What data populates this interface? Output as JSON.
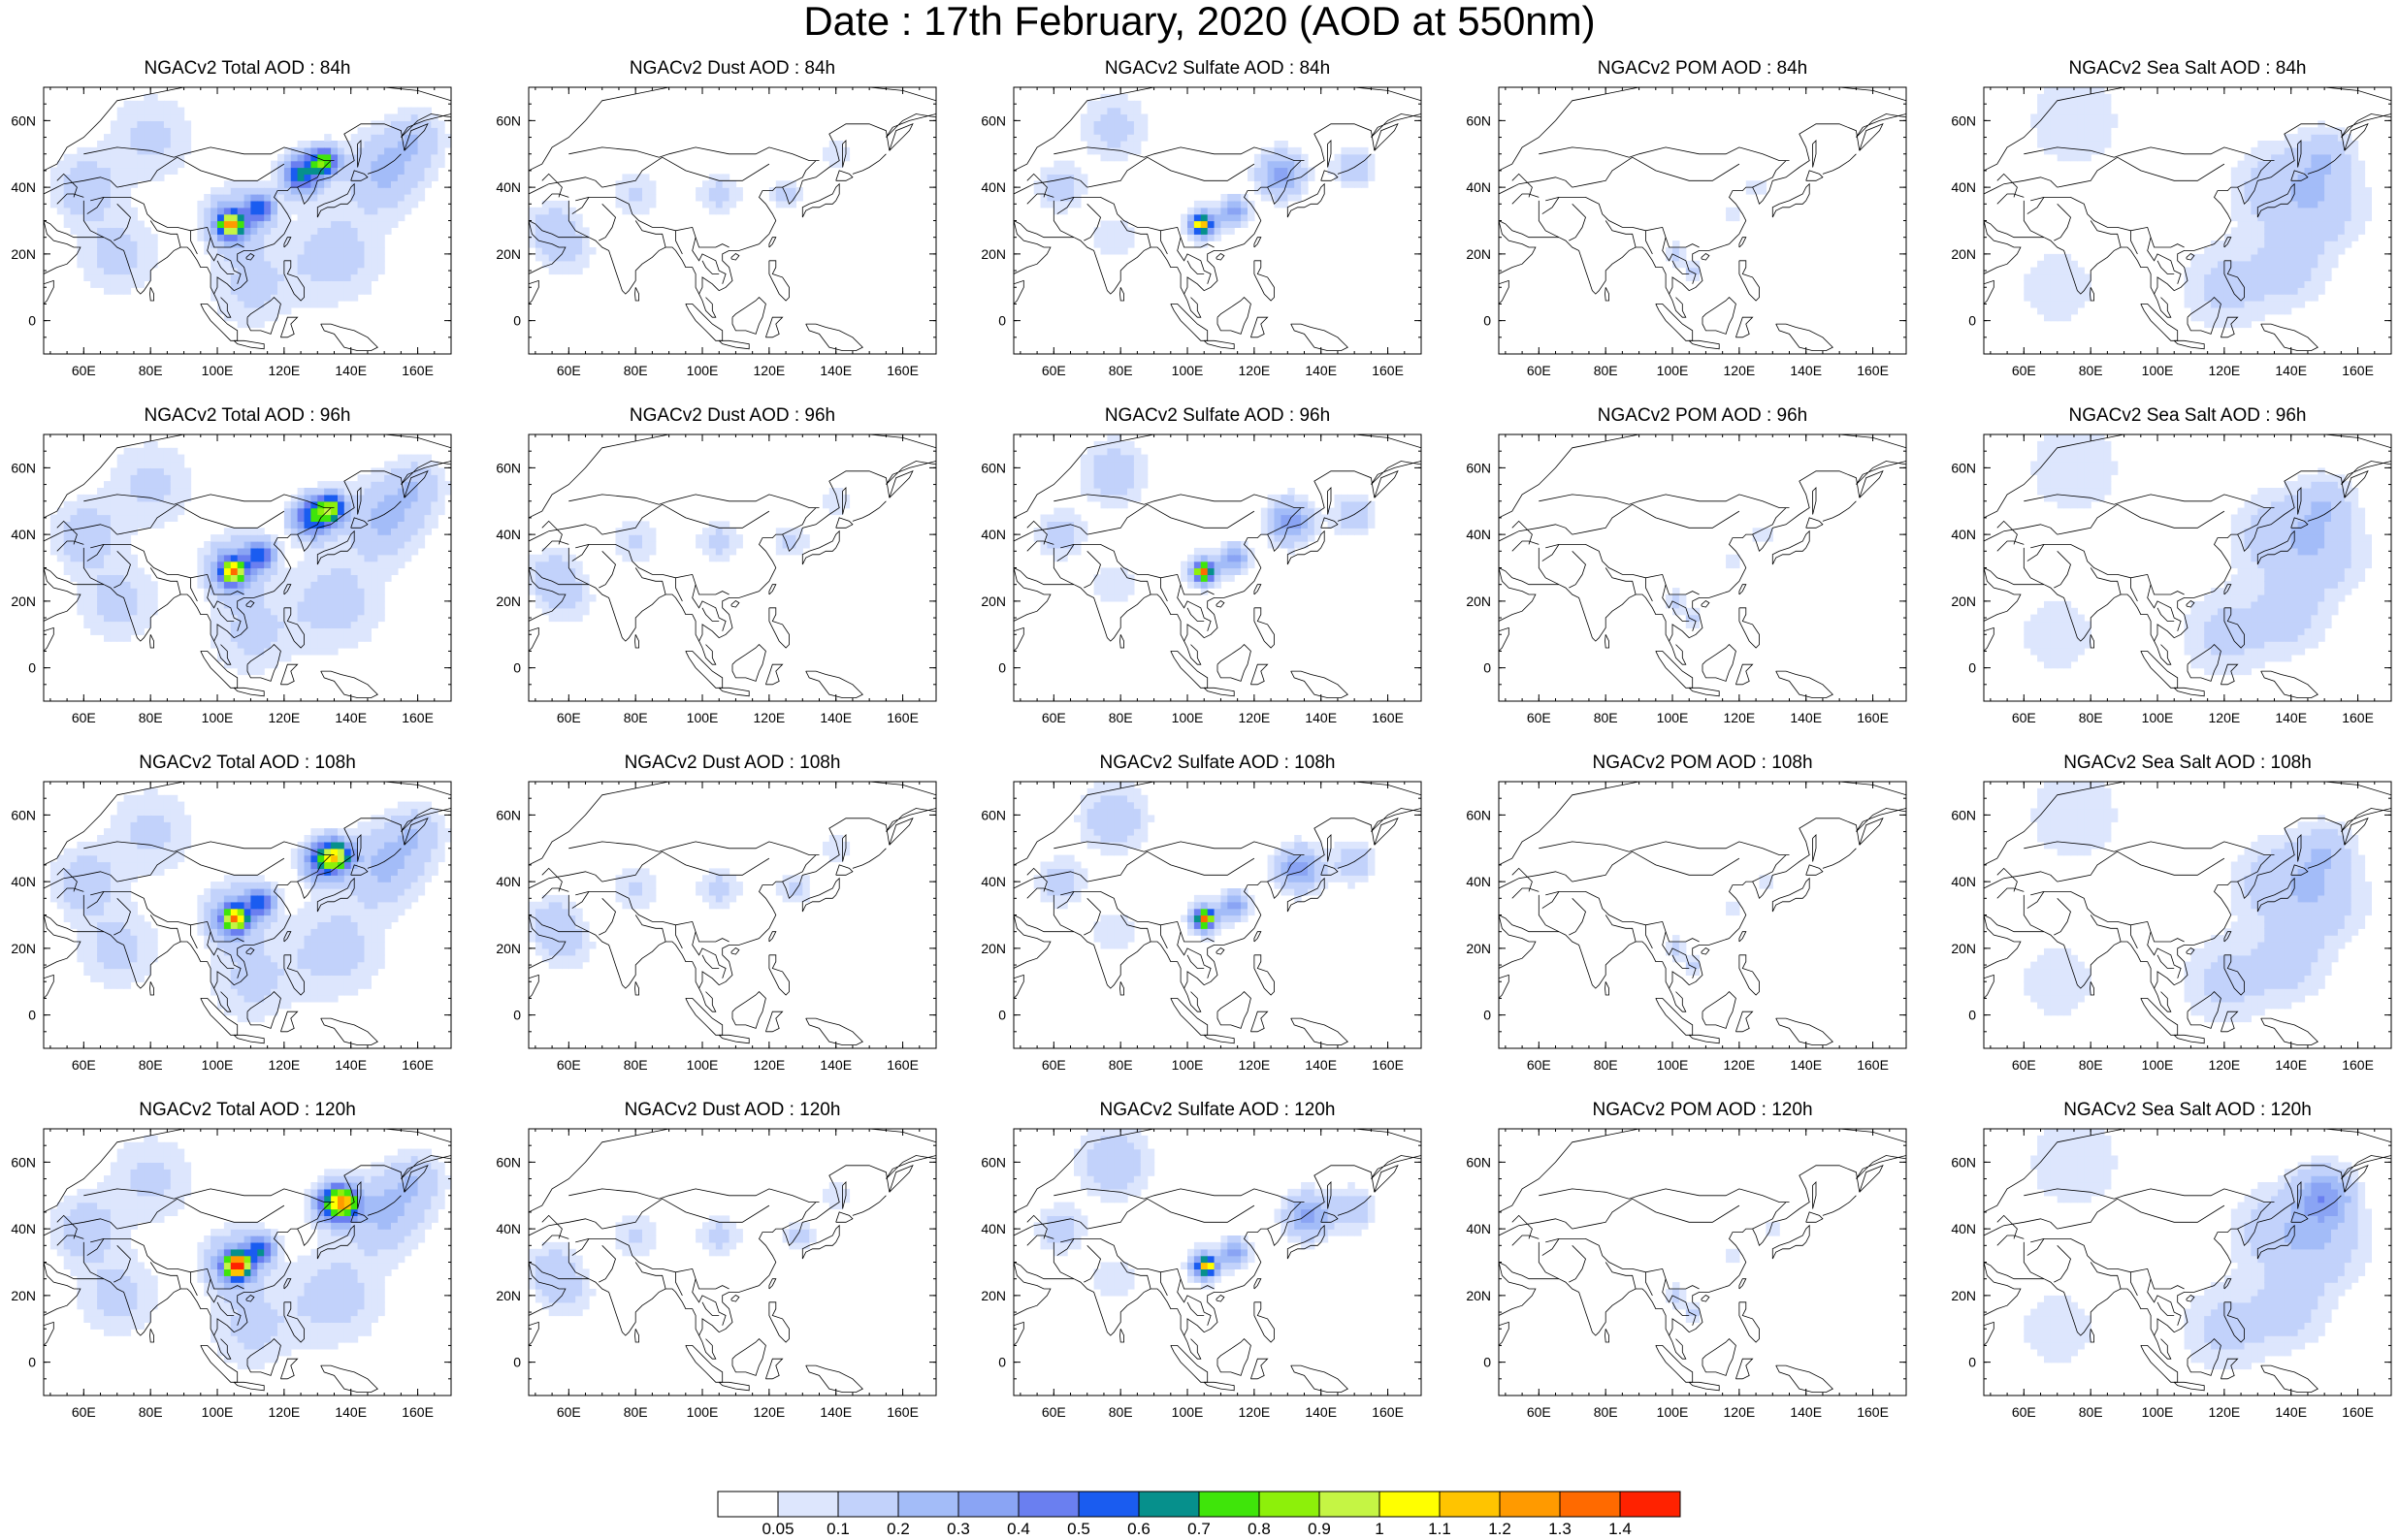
{
  "title": "Date : 17th February, 2020 (AOD at 550nm)",
  "panels": [
    {
      "title": "NGACv2 Total AOD : 84h",
      "species": "total",
      "lead": 84
    },
    {
      "title": "NGACv2 Dust AOD : 84h",
      "species": "dust",
      "lead": 84
    },
    {
      "title": "NGACv2 Sulfate AOD : 84h",
      "species": "sulfate",
      "lead": 84
    },
    {
      "title": "NGACv2 POM AOD : 84h",
      "species": "pom",
      "lead": 84
    },
    {
      "title": "NGACv2 Sea Salt AOD : 84h",
      "species": "seasalt",
      "lead": 84
    },
    {
      "title": "NGACv2 Total AOD : 96h",
      "species": "total",
      "lead": 96
    },
    {
      "title": "NGACv2 Dust AOD : 96h",
      "species": "dust",
      "lead": 96
    },
    {
      "title": "NGACv2 Sulfate AOD : 96h",
      "species": "sulfate",
      "lead": 96
    },
    {
      "title": "NGACv2 POM AOD : 96h",
      "species": "pom",
      "lead": 96
    },
    {
      "title": "NGACv2 Sea Salt AOD : 96h",
      "species": "seasalt",
      "lead": 96
    },
    {
      "title": "NGACv2 Total AOD : 108h",
      "species": "total",
      "lead": 108
    },
    {
      "title": "NGACv2 Dust AOD : 108h",
      "species": "dust",
      "lead": 108
    },
    {
      "title": "NGACv2 Sulfate AOD : 108h",
      "species": "sulfate",
      "lead": 108
    },
    {
      "title": "NGACv2 POM AOD : 108h",
      "species": "pom",
      "lead": 108
    },
    {
      "title": "NGACv2 Sea Salt AOD : 108h",
      "species": "seasalt",
      "lead": 108
    },
    {
      "title": "NGACv2 Total AOD : 120h",
      "species": "total",
      "lead": 120
    },
    {
      "title": "NGACv2 Dust AOD : 120h",
      "species": "dust",
      "lead": 120
    },
    {
      "title": "NGACv2 Sulfate AOD : 120h",
      "species": "sulfate",
      "lead": 120
    },
    {
      "title": "NGACv2 POM AOD : 120h",
      "species": "pom",
      "lead": 120
    },
    {
      "title": "NGACv2 Sea Salt  AOD : 120h",
      "species": "seasalt",
      "lead": 120
    }
  ],
  "map": {
    "lon_range": [
      48,
      170
    ],
    "lat_range": [
      -10,
      70
    ],
    "lon_ticks": [
      "60E",
      "80E",
      "100E",
      "120E",
      "140E",
      "160E"
    ],
    "lon_tick_values": [
      60,
      80,
      100,
      120,
      140,
      160
    ],
    "lat_ticks": [
      "0",
      "20N",
      "40N",
      "60N"
    ],
    "lat_tick_values": [
      0,
      20,
      40,
      60
    ]
  },
  "colorbar": {
    "labels": [
      "0.05",
      "0.1",
      "0.2",
      "0.3",
      "0.4",
      "0.5",
      "0.6",
      "0.7",
      "0.8",
      "0.9",
      "1",
      "1.1",
      "1.2",
      "1.3",
      "1.4"
    ],
    "colors": [
      "#ffffff",
      "#dde6fd",
      "#c2d2fb",
      "#a3bcf8",
      "#8aa4f4",
      "#6a7ff0",
      "#1a5cf0",
      "#06908c",
      "#3fe50a",
      "#8df00a",
      "#c5f544",
      "#ffff00",
      "#ffc400",
      "#ff9a00",
      "#ff6a00",
      "#ff2200"
    ]
  }
}
